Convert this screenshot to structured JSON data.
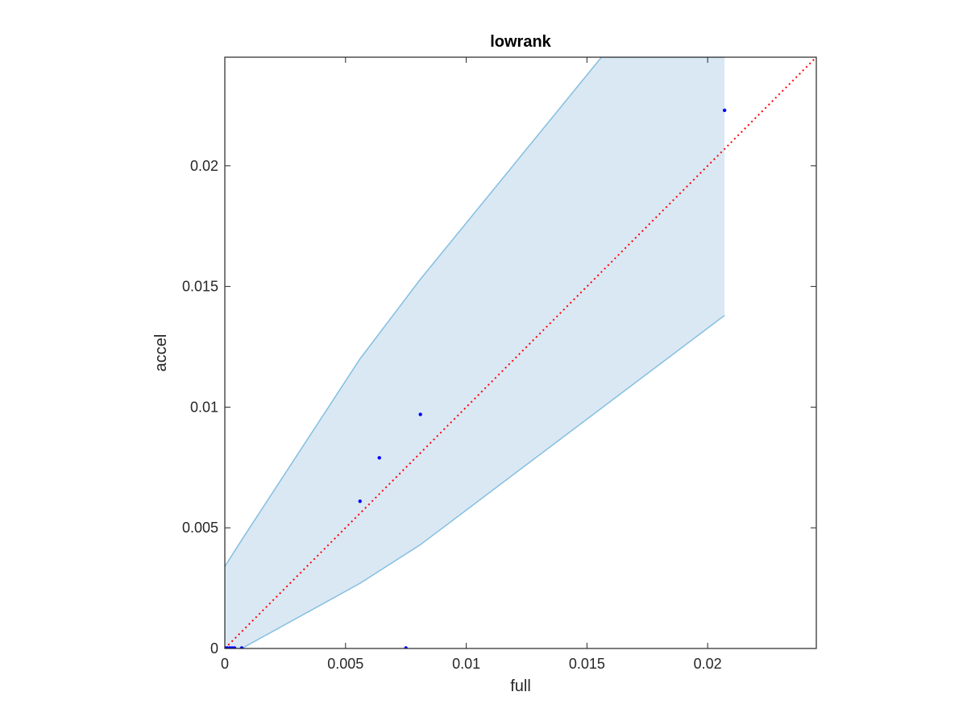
{
  "chart_data": {
    "type": "scatter",
    "title": "lowrank",
    "xlabel": "full",
    "ylabel": "accel",
    "xlim": [
      0,
      0.0245
    ],
    "ylim": [
      0,
      0.0245
    ],
    "xticks": [
      0,
      0.005,
      0.01,
      0.015,
      0.02
    ],
    "xtick_labels": [
      "0",
      "0.005",
      "0.01",
      "0.015",
      "0.02"
    ],
    "yticks": [
      0,
      0.005,
      0.01,
      0.015,
      0.02
    ],
    "ytick_labels": [
      "0",
      "0.005",
      "0.01",
      "0.015",
      "0.02"
    ],
    "grid": false,
    "points": [
      {
        "x": 2e-05,
        "y": 2e-05
      },
      {
        "x": 0.0001,
        "y": 2e-05
      },
      {
        "x": 0.0002,
        "y": 2e-05
      },
      {
        "x": 0.0003,
        "y": 2e-05
      },
      {
        "x": 0.0004,
        "y": 2e-05
      },
      {
        "x": 0.0007,
        "y": 2e-05
      },
      {
        "x": 0.0075,
        "y": 2e-05
      },
      {
        "x": 0.0056,
        "y": 0.0061
      },
      {
        "x": 0.0064,
        "y": 0.0079
      },
      {
        "x": 0.0081,
        "y": 0.0097
      },
      {
        "x": 0.0207,
        "y": 0.0223
      }
    ],
    "band": {
      "upper": [
        {
          "x": 0,
          "y": 0.0034
        },
        {
          "x": 0.0007,
          "y": 0.0045
        },
        {
          "x": 0.0056,
          "y": 0.012
        },
        {
          "x": 0.0081,
          "y": 0.0153
        },
        {
          "x": 0.0156,
          "y": 0.0245
        },
        {
          "x": 0.0207,
          "y": 0.0245
        }
      ],
      "lower": [
        {
          "x": 0,
          "y": 0
        },
        {
          "x": 0.0007,
          "y": 0
        },
        {
          "x": 0.0056,
          "y": 0.0027
        },
        {
          "x": 0.0081,
          "y": 0.0043
        },
        {
          "x": 0.0207,
          "y": 0.0138
        }
      ]
    },
    "reference_line": {
      "style": "dotted",
      "from": [
        0,
        0
      ],
      "to": [
        0.0245,
        0.0245
      ]
    },
    "colors": {
      "band_fill": "#dae8f4",
      "band_edge": "#84bfe0",
      "points": "#0000ff",
      "reference_line": "#ff0000",
      "axes": "#262626"
    }
  }
}
